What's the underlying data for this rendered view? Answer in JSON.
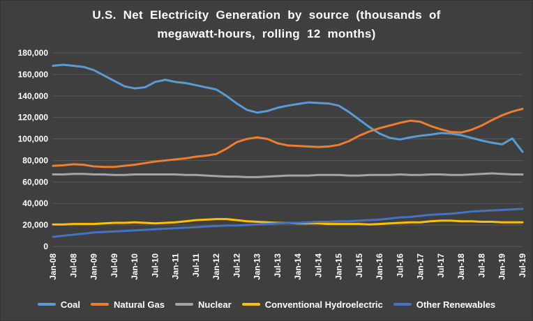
{
  "header": {
    "title_lines": [
      "U.S. Net Electricity Generation by source (thousands of",
      "megawatt-hours, rolling 12 months)"
    ]
  },
  "chart_data": {
    "type": "line",
    "title": "U.S. Net Electricity Generation by source (thousands of megawatt-hours, rolling 12 months)",
    "xlabel": "",
    "ylabel": "",
    "ylim": [
      0,
      180000
    ],
    "y_tick_step": 20000,
    "y_tick_labels": [
      "0",
      "20,000",
      "40,000",
      "60,000",
      "80,000",
      "100,000",
      "120,000",
      "140,000",
      "160,000",
      "180,000"
    ],
    "x": [
      "Jan-08",
      "Apr-08",
      "Jul-08",
      "Oct-08",
      "Jan-09",
      "Apr-09",
      "Jul-09",
      "Oct-09",
      "Jan-10",
      "Apr-10",
      "Jul-10",
      "Oct-10",
      "Jan-11",
      "Apr-11",
      "Jul-11",
      "Oct-11",
      "Jan-12",
      "Apr-12",
      "Jul-12",
      "Oct-12",
      "Jan-13",
      "Apr-13",
      "Jul-13",
      "Oct-13",
      "Jan-14",
      "Apr-14",
      "Jul-14",
      "Oct-14",
      "Jan-15",
      "Apr-15",
      "Jul-15",
      "Oct-15",
      "Jan-16",
      "Apr-16",
      "Jul-16",
      "Oct-16",
      "Jan-17",
      "Apr-17",
      "Jul-17",
      "Oct-17",
      "Jan-18",
      "Apr-18",
      "Jul-18",
      "Oct-18",
      "Jan-19",
      "Apr-19",
      "Jul-19"
    ],
    "x_tick_step": 2,
    "x_tick_labels": [
      "Jan-08",
      "Jul-08",
      "Jan-09",
      "Jul-09",
      "Jan-10",
      "Jul-10",
      "Jan-11",
      "Jul-11",
      "Jan-12",
      "Jul-12",
      "Jan-13",
      "Jul-13",
      "Jan-14",
      "Jul-14",
      "Jan-15",
      "Jul-15",
      "Jan-16",
      "Jul-16",
      "Jan-17",
      "Jul-17",
      "Jan-18",
      "Jul-18",
      "Jan-19",
      "Jul-19"
    ],
    "grid": true,
    "legend_position": "bottom",
    "colors": {
      "background": "#3F3F3F",
      "gridline": "#595959",
      "text": "#FFFFFF"
    },
    "series": [
      {
        "name": "Coal",
        "color": "#5B9BD5",
        "values": [
          168000,
          169000,
          168000,
          167000,
          164000,
          159000,
          154000,
          149000,
          147000,
          148000,
          153000,
          155000,
          153000,
          152000,
          150000,
          148000,
          146000,
          140000,
          133000,
          127000,
          124500,
          126000,
          129000,
          131000,
          132500,
          134000,
          133500,
          133000,
          131000,
          125000,
          118000,
          111000,
          105000,
          101000,
          99500,
          101500,
          103000,
          104000,
          105500,
          105000,
          103500,
          101000,
          98500,
          96500,
          95000,
          100500,
          88000
        ]
      },
      {
        "name": "Natural Gas",
        "color": "#ED7D31",
        "values": [
          75000,
          75500,
          76500,
          76000,
          74500,
          74000,
          74000,
          75000,
          76000,
          77500,
          79000,
          80000,
          81000,
          82000,
          83500,
          84500,
          86000,
          91000,
          97000,
          100000,
          101500,
          100000,
          96000,
          94000,
          93500,
          93000,
          92500,
          93000,
          94500,
          98000,
          103000,
          107000,
          110000,
          112500,
          115000,
          117000,
          116000,
          112000,
          109000,
          106500,
          106000,
          108500,
          112500,
          117500,
          122000,
          125500,
          128000
        ]
      },
      {
        "name": "Nuclear",
        "color": "#A5A5A5",
        "values": [
          67000,
          67000,
          67500,
          67500,
          67000,
          67000,
          66500,
          66500,
          67000,
          67000,
          67000,
          67000,
          67000,
          66500,
          66500,
          66000,
          65500,
          65000,
          65000,
          64500,
          64500,
          65000,
          65500,
          66000,
          66000,
          66000,
          66500,
          66500,
          66500,
          66000,
          66000,
          66500,
          66500,
          66500,
          67000,
          66500,
          66500,
          67000,
          67000,
          66500,
          66500,
          67000,
          67500,
          68000,
          67500,
          67000,
          67000
        ]
      },
      {
        "name": "Conventional Hydroelectric",
        "color": "#FFC000",
        "values": [
          20500,
          20500,
          21000,
          21000,
          21000,
          21500,
          22000,
          22000,
          22500,
          22000,
          21500,
          22000,
          22500,
          23500,
          24500,
          25000,
          25500,
          25500,
          24500,
          23500,
          23000,
          22500,
          22000,
          22000,
          21500,
          21500,
          21500,
          21000,
          21000,
          21000,
          21000,
          20500,
          21000,
          21500,
          22000,
          22500,
          22500,
          23500,
          24000,
          24000,
          23500,
          23500,
          23000,
          23000,
          22500,
          22500,
          22500
        ]
      },
      {
        "name": "Other Renewables",
        "color": "#4472C4",
        "values": [
          9000,
          10000,
          11000,
          12000,
          13000,
          13500,
          14000,
          14500,
          15000,
          15500,
          16000,
          16500,
          17000,
          17500,
          18000,
          18500,
          19000,
          19500,
          19500,
          20000,
          20500,
          21000,
          21500,
          22000,
          22000,
          22500,
          23000,
          23000,
          23500,
          23500,
          24000,
          24500,
          25000,
          26000,
          27000,
          27500,
          28500,
          29500,
          30000,
          30500,
          31500,
          32500,
          33000,
          33500,
          34000,
          34500,
          35000
        ]
      }
    ]
  }
}
